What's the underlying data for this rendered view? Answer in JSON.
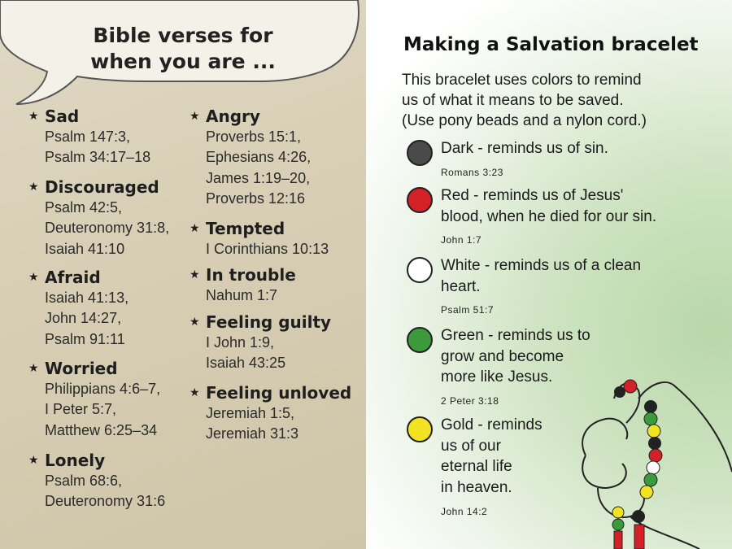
{
  "left_page": {
    "bubble_title_line1": "Bible verses for",
    "bubble_title_line2": "when you are ...",
    "bullet_icon": "star-icon",
    "sections": [
      {
        "heading": "Sad",
        "refs": [
          "Psalm 147:3,",
          "Psalm 34:17–18"
        ]
      },
      {
        "heading": "Discouraged",
        "refs": [
          "Psalm 42:5,",
          "Deuteronomy 31:8,",
          "Isaiah 41:10"
        ]
      },
      {
        "heading": "Afraid",
        "refs": [
          "Isaiah 41:13,",
          "John 14:27,",
          "Psalm 91:11"
        ]
      },
      {
        "heading": "Worried",
        "refs": [
          "Philippians 4:6–7,",
          "I Peter 5:7,",
          "Matthew 6:25–34"
        ]
      },
      {
        "heading": "Lonely",
        "refs": [
          "Psalm 68:6,",
          "Deuteronomy 31:6"
        ]
      },
      {
        "heading": "Angry",
        "refs": [
          "Proverbs 15:1,",
          "Ephesians 4:26,",
          "James 1:19–20,",
          "Proverbs 12:16"
        ]
      },
      {
        "heading": "Tempted",
        "refs": [
          "I Corinthians 10:13"
        ]
      },
      {
        "heading": "In trouble",
        "refs": [
          "Nahum 1:7"
        ]
      },
      {
        "heading": "Feeling guilty",
        "refs": [
          "I John 1:9,",
          "Isaiah 43:25"
        ]
      },
      {
        "heading": "Feeling unloved",
        "refs": [
          "Jeremiah 1:5,",
          "Jeremiah 31:3"
        ]
      }
    ]
  },
  "right_page": {
    "title": "Making a Salvation bracelet",
    "intro": [
      "This bracelet uses colors to remind",
      "us of what it means to be saved.",
      "(Use pony beads and a nylon cord.)"
    ],
    "items": [
      {
        "color": "#4a4a4a",
        "text": "Dark - reminds us of sin.",
        "ref": "Romans 3:23"
      },
      {
        "color": "#d42027",
        "text": "Red - reminds us of Jesus'\nblood, when he died for our sin.",
        "ref": "John 1:7"
      },
      {
        "color": "#ffffff",
        "text": "White - reminds us of a clean\nheart.",
        "ref": "Psalm 51:7"
      },
      {
        "color": "#3a9a3c",
        "text": "Green - reminds us to\ngrow and become\nmore like Jesus.",
        "ref": "2 Peter 3:18"
      },
      {
        "color": "#f2e322",
        "text": "Gold - reminds\nus of our\neternal life\nin heaven.",
        "ref": "John 14:2"
      }
    ]
  }
}
